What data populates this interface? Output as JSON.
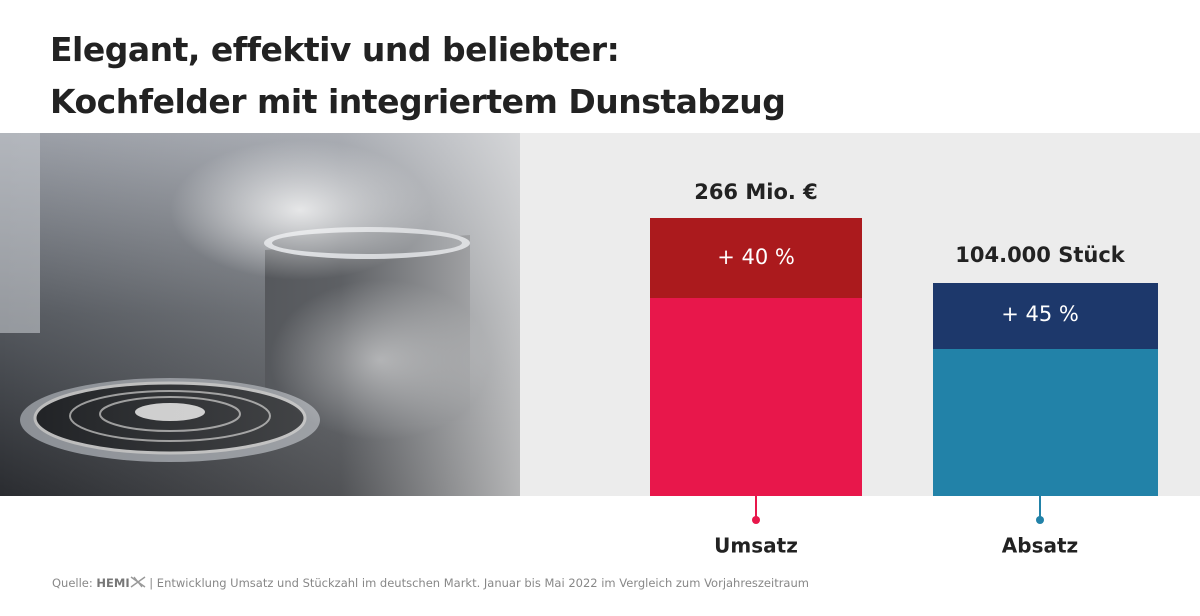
{
  "header": {
    "title_lines": [
      "Elegant, effektiv und beliebter:",
      "Kochfelder mit integriertem Dunstabzug"
    ]
  },
  "bars": [
    {
      "total_label": "266 Mio. €",
      "growth_label": "+ 40 %",
      "name": "Umsatz"
    },
    {
      "total_label": "104.000 Stück",
      "growth_label": "+ 45 %",
      "name": "Absatz"
    }
  ],
  "footer": {
    "source_label": "Quelle:",
    "logo": "HEMI",
    "text": "| Entwicklung Umsatz und Stückzahl im deutschen Markt. Januar bis Mai 2022 im Vergleich zum Vorjahreszeitraum"
  }
}
